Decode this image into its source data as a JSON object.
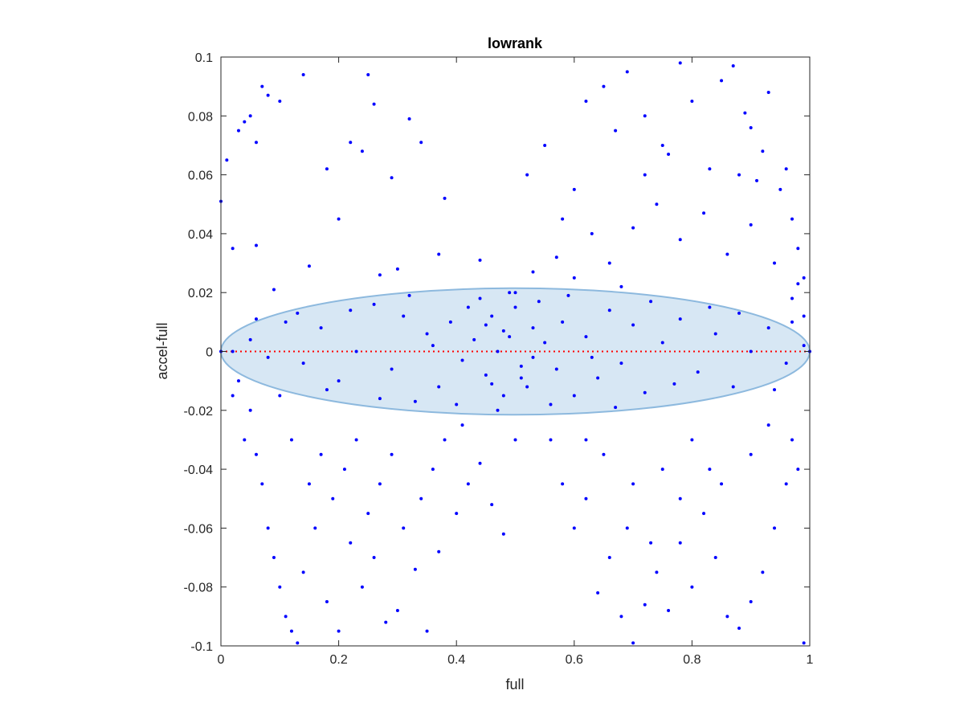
{
  "chart_data": {
    "type": "scatter",
    "title": "lowrank",
    "xlabel": "full",
    "ylabel": "accel-full",
    "xlim": [
      0,
      1
    ],
    "ylim": [
      -0.1,
      0.1
    ],
    "xticks": [
      0,
      0.2,
      0.4,
      0.6,
      0.8,
      1
    ],
    "xtick_labels": [
      "0",
      "0.2",
      "0.4",
      "0.6",
      "0.8",
      "1"
    ],
    "yticks": [
      -0.1,
      -0.08,
      -0.06,
      -0.04,
      -0.02,
      0,
      0.02,
      0.04,
      0.06,
      0.08,
      0.1
    ],
    "ytick_labels": [
      "-0.1",
      "-0.08",
      "-0.06",
      "-0.04",
      "-0.02",
      "0",
      "0.02",
      "0.04",
      "0.06",
      "0.08",
      "0.1"
    ],
    "grid": false,
    "legend": "none",
    "reference_line": {
      "y": 0,
      "x_range": [
        0,
        1
      ],
      "style": "dotted",
      "color": "#ff0000"
    },
    "ellipse": {
      "center": [
        0.5,
        0
      ],
      "x_semi_axis": 0.5,
      "y_semi_axis": 0.0215,
      "fill": "#d7e7f4",
      "stroke": "#8db9de"
    },
    "series": [
      {
        "marker_color": "#0000ff",
        "points": [
          [
            0.0,
            0.051
          ],
          [
            0.01,
            0.065
          ],
          [
            0.02,
            0.035
          ],
          [
            0.03,
            0.075
          ],
          [
            0.04,
            0.078
          ],
          [
            0.05,
            0.08
          ],
          [
            0.06,
            0.071
          ],
          [
            0.07,
            0.09
          ],
          [
            0.08,
            0.087
          ],
          [
            0.1,
            0.085
          ],
          [
            0.14,
            0.094
          ],
          [
            0.18,
            0.062
          ],
          [
            0.22,
            0.071
          ],
          [
            0.24,
            0.068
          ],
          [
            0.26,
            0.084
          ],
          [
            0.29,
            0.059
          ],
          [
            0.32,
            0.079
          ],
          [
            0.34,
            0.071
          ],
          [
            0.38,
            0.052
          ],
          [
            0.25,
            0.094
          ],
          [
            0.06,
            0.036
          ],
          [
            0.09,
            0.021
          ],
          [
            0.15,
            0.029
          ],
          [
            0.2,
            0.045
          ],
          [
            0.27,
            0.026
          ],
          [
            0.3,
            0.028
          ],
          [
            0.37,
            0.033
          ],
          [
            0.44,
            0.031
          ],
          [
            0.49,
            0.02
          ],
          [
            0.53,
            0.027
          ],
          [
            0.52,
            0.06
          ],
          [
            0.55,
            0.07
          ],
          [
            0.58,
            0.045
          ],
          [
            0.6,
            0.055
          ],
          [
            0.62,
            0.085
          ],
          [
            0.65,
            0.09
          ],
          [
            0.67,
            0.075
          ],
          [
            0.69,
            0.095
          ],
          [
            0.72,
            0.08
          ],
          [
            0.75,
            0.07
          ],
          [
            0.78,
            0.098
          ],
          [
            0.8,
            0.085
          ],
          [
            0.83,
            0.062
          ],
          [
            0.85,
            0.092
          ],
          [
            0.87,
            0.097
          ],
          [
            0.89,
            0.081
          ],
          [
            0.9,
            0.076
          ],
          [
            0.92,
            0.068
          ],
          [
            0.93,
            0.088
          ],
          [
            0.95,
            0.055
          ],
          [
            0.96,
            0.062
          ],
          [
            0.97,
            0.045
          ],
          [
            0.98,
            0.035
          ],
          [
            0.99,
            0.025
          ],
          [
            0.63,
            0.04
          ],
          [
            0.66,
            0.03
          ],
          [
            0.7,
            0.042
          ],
          [
            0.74,
            0.05
          ],
          [
            0.78,
            0.038
          ],
          [
            0.82,
            0.047
          ],
          [
            0.86,
            0.033
          ],
          [
            0.9,
            0.043
          ],
          [
            0.94,
            0.03
          ],
          [
            0.97,
            0.018
          ],
          [
            0.98,
            0.023
          ],
          [
            0.99,
            0.012
          ],
          [
            0.72,
            0.06
          ],
          [
            0.76,
            0.067
          ],
          [
            0.88,
            0.06
          ],
          [
            0.91,
            0.058
          ],
          [
            0.57,
            0.032
          ],
          [
            0.6,
            0.025
          ],
          [
            0.68,
            0.022
          ],
          [
            0.03,
            -0.01
          ],
          [
            0.05,
            -0.02
          ],
          [
            0.06,
            -0.035
          ],
          [
            0.07,
            -0.045
          ],
          [
            0.08,
            -0.06
          ],
          [
            0.09,
            -0.07
          ],
          [
            0.1,
            -0.08
          ],
          [
            0.11,
            -0.09
          ],
          [
            0.12,
            -0.095
          ],
          [
            0.13,
            -0.099
          ],
          [
            0.14,
            -0.075
          ],
          [
            0.16,
            -0.06
          ],
          [
            0.18,
            -0.085
          ],
          [
            0.2,
            -0.095
          ],
          [
            0.22,
            -0.065
          ],
          [
            0.24,
            -0.08
          ],
          [
            0.26,
            -0.07
          ],
          [
            0.28,
            -0.092
          ],
          [
            0.3,
            -0.088
          ],
          [
            0.33,
            -0.074
          ],
          [
            0.35,
            -0.095
          ],
          [
            0.37,
            -0.068
          ],
          [
            0.4,
            -0.055
          ],
          [
            0.42,
            -0.045
          ],
          [
            0.44,
            -0.038
          ],
          [
            0.46,
            -0.052
          ],
          [
            0.48,
            -0.062
          ],
          [
            0.5,
            -0.03
          ],
          [
            0.04,
            -0.03
          ],
          [
            0.02,
            -0.015
          ],
          [
            0.15,
            -0.045
          ],
          [
            0.17,
            -0.035
          ],
          [
            0.19,
            -0.05
          ],
          [
            0.21,
            -0.04
          ],
          [
            0.23,
            -0.03
          ],
          [
            0.25,
            -0.055
          ],
          [
            0.27,
            -0.045
          ],
          [
            0.29,
            -0.035
          ],
          [
            0.31,
            -0.06
          ],
          [
            0.34,
            -0.05
          ],
          [
            0.36,
            -0.04
          ],
          [
            0.38,
            -0.03
          ],
          [
            0.41,
            -0.025
          ],
          [
            0.12,
            -0.03
          ],
          [
            0.56,
            -0.03
          ],
          [
            0.58,
            -0.045
          ],
          [
            0.6,
            -0.06
          ],
          [
            0.62,
            -0.05
          ],
          [
            0.64,
            -0.082
          ],
          [
            0.66,
            -0.07
          ],
          [
            0.68,
            -0.09
          ],
          [
            0.7,
            -0.099
          ],
          [
            0.72,
            -0.086
          ],
          [
            0.74,
            -0.075
          ],
          [
            0.76,
            -0.088
          ],
          [
            0.78,
            -0.065
          ],
          [
            0.8,
            -0.08
          ],
          [
            0.82,
            -0.055
          ],
          [
            0.84,
            -0.07
          ],
          [
            0.86,
            -0.09
          ],
          [
            0.88,
            -0.094
          ],
          [
            0.9,
            -0.085
          ],
          [
            0.92,
            -0.075
          ],
          [
            0.94,
            -0.06
          ],
          [
            0.96,
            -0.045
          ],
          [
            0.97,
            -0.03
          ],
          [
            0.98,
            -0.04
          ],
          [
            0.99,
            -0.099
          ],
          [
            0.65,
            -0.035
          ],
          [
            0.7,
            -0.045
          ],
          [
            0.75,
            -0.04
          ],
          [
            0.8,
            -0.03
          ],
          [
            0.85,
            -0.045
          ],
          [
            0.9,
            -0.035
          ],
          [
            0.93,
            -0.025
          ],
          [
            0.62,
            -0.03
          ],
          [
            0.69,
            -0.06
          ],
          [
            0.73,
            -0.065
          ],
          [
            0.78,
            -0.05
          ],
          [
            0.83,
            -0.04
          ],
          [
            0.47,
            0.0
          ],
          [
            0.49,
            0.005
          ],
          [
            0.51,
            -0.005
          ],
          [
            0.53,
            0.008
          ],
          [
            0.45,
            -0.008
          ],
          [
            0.46,
            0.012
          ],
          [
            0.52,
            -0.012
          ],
          [
            0.55,
            0.003
          ],
          [
            0.43,
            0.004
          ],
          [
            0.48,
            -0.015
          ],
          [
            0.5,
            0.015
          ],
          [
            0.57,
            -0.006
          ],
          [
            0.41,
            -0.003
          ],
          [
            0.54,
            0.017
          ],
          [
            0.44,
            0.018
          ],
          [
            0.58,
            0.01
          ],
          [
            0.39,
            0.01
          ],
          [
            0.6,
            -0.015
          ],
          [
            0.37,
            -0.012
          ],
          [
            0.62,
            0.005
          ],
          [
            0.35,
            0.006
          ],
          [
            0.64,
            -0.009
          ],
          [
            0.33,
            -0.017
          ],
          [
            0.66,
            0.014
          ],
          [
            0.31,
            0.012
          ],
          [
            0.68,
            -0.004
          ],
          [
            0.29,
            -0.006
          ],
          [
            0.7,
            0.009
          ],
          [
            0.26,
            0.016
          ],
          [
            0.72,
            -0.014
          ],
          [
            0.23,
            0.0
          ],
          [
            0.75,
            0.003
          ],
          [
            0.2,
            -0.01
          ],
          [
            0.78,
            0.011
          ],
          [
            0.17,
            0.008
          ],
          [
            0.81,
            -0.007
          ],
          [
            0.14,
            -0.004
          ],
          [
            0.84,
            0.006
          ],
          [
            0.11,
            0.01
          ],
          [
            0.87,
            -0.012
          ],
          [
            0.08,
            -0.002
          ],
          [
            0.9,
            0.0
          ],
          [
            0.05,
            0.004
          ],
          [
            0.93,
            0.008
          ],
          [
            0.02,
            0.0
          ],
          [
            0.96,
            -0.004
          ],
          [
            0.99,
            0.002
          ],
          [
            1.0,
            0.0
          ],
          [
            0.0,
            0.0
          ],
          [
            0.47,
            -0.02
          ],
          [
            0.5,
            0.02
          ],
          [
            0.42,
            0.015
          ],
          [
            0.56,
            -0.018
          ],
          [
            0.36,
            0.002
          ],
          [
            0.63,
            -0.002
          ],
          [
            0.4,
            -0.018
          ],
          [
            0.59,
            0.019
          ],
          [
            0.32,
            0.019
          ],
          [
            0.67,
            -0.019
          ],
          [
            0.27,
            -0.016
          ],
          [
            0.73,
            0.017
          ],
          [
            0.22,
            0.014
          ],
          [
            0.77,
            -0.011
          ],
          [
            0.18,
            -0.013
          ],
          [
            0.83,
            0.015
          ],
          [
            0.13,
            0.013
          ],
          [
            0.88,
            0.013
          ],
          [
            0.1,
            -0.015
          ],
          [
            0.94,
            -0.013
          ],
          [
            0.06,
            0.011
          ],
          [
            0.97,
            0.01
          ],
          [
            0.45,
            0.009
          ],
          [
            0.51,
            -0.009
          ],
          [
            0.48,
            0.007
          ],
          [
            0.53,
            -0.002
          ],
          [
            0.46,
            -0.011
          ]
        ]
      }
    ]
  }
}
